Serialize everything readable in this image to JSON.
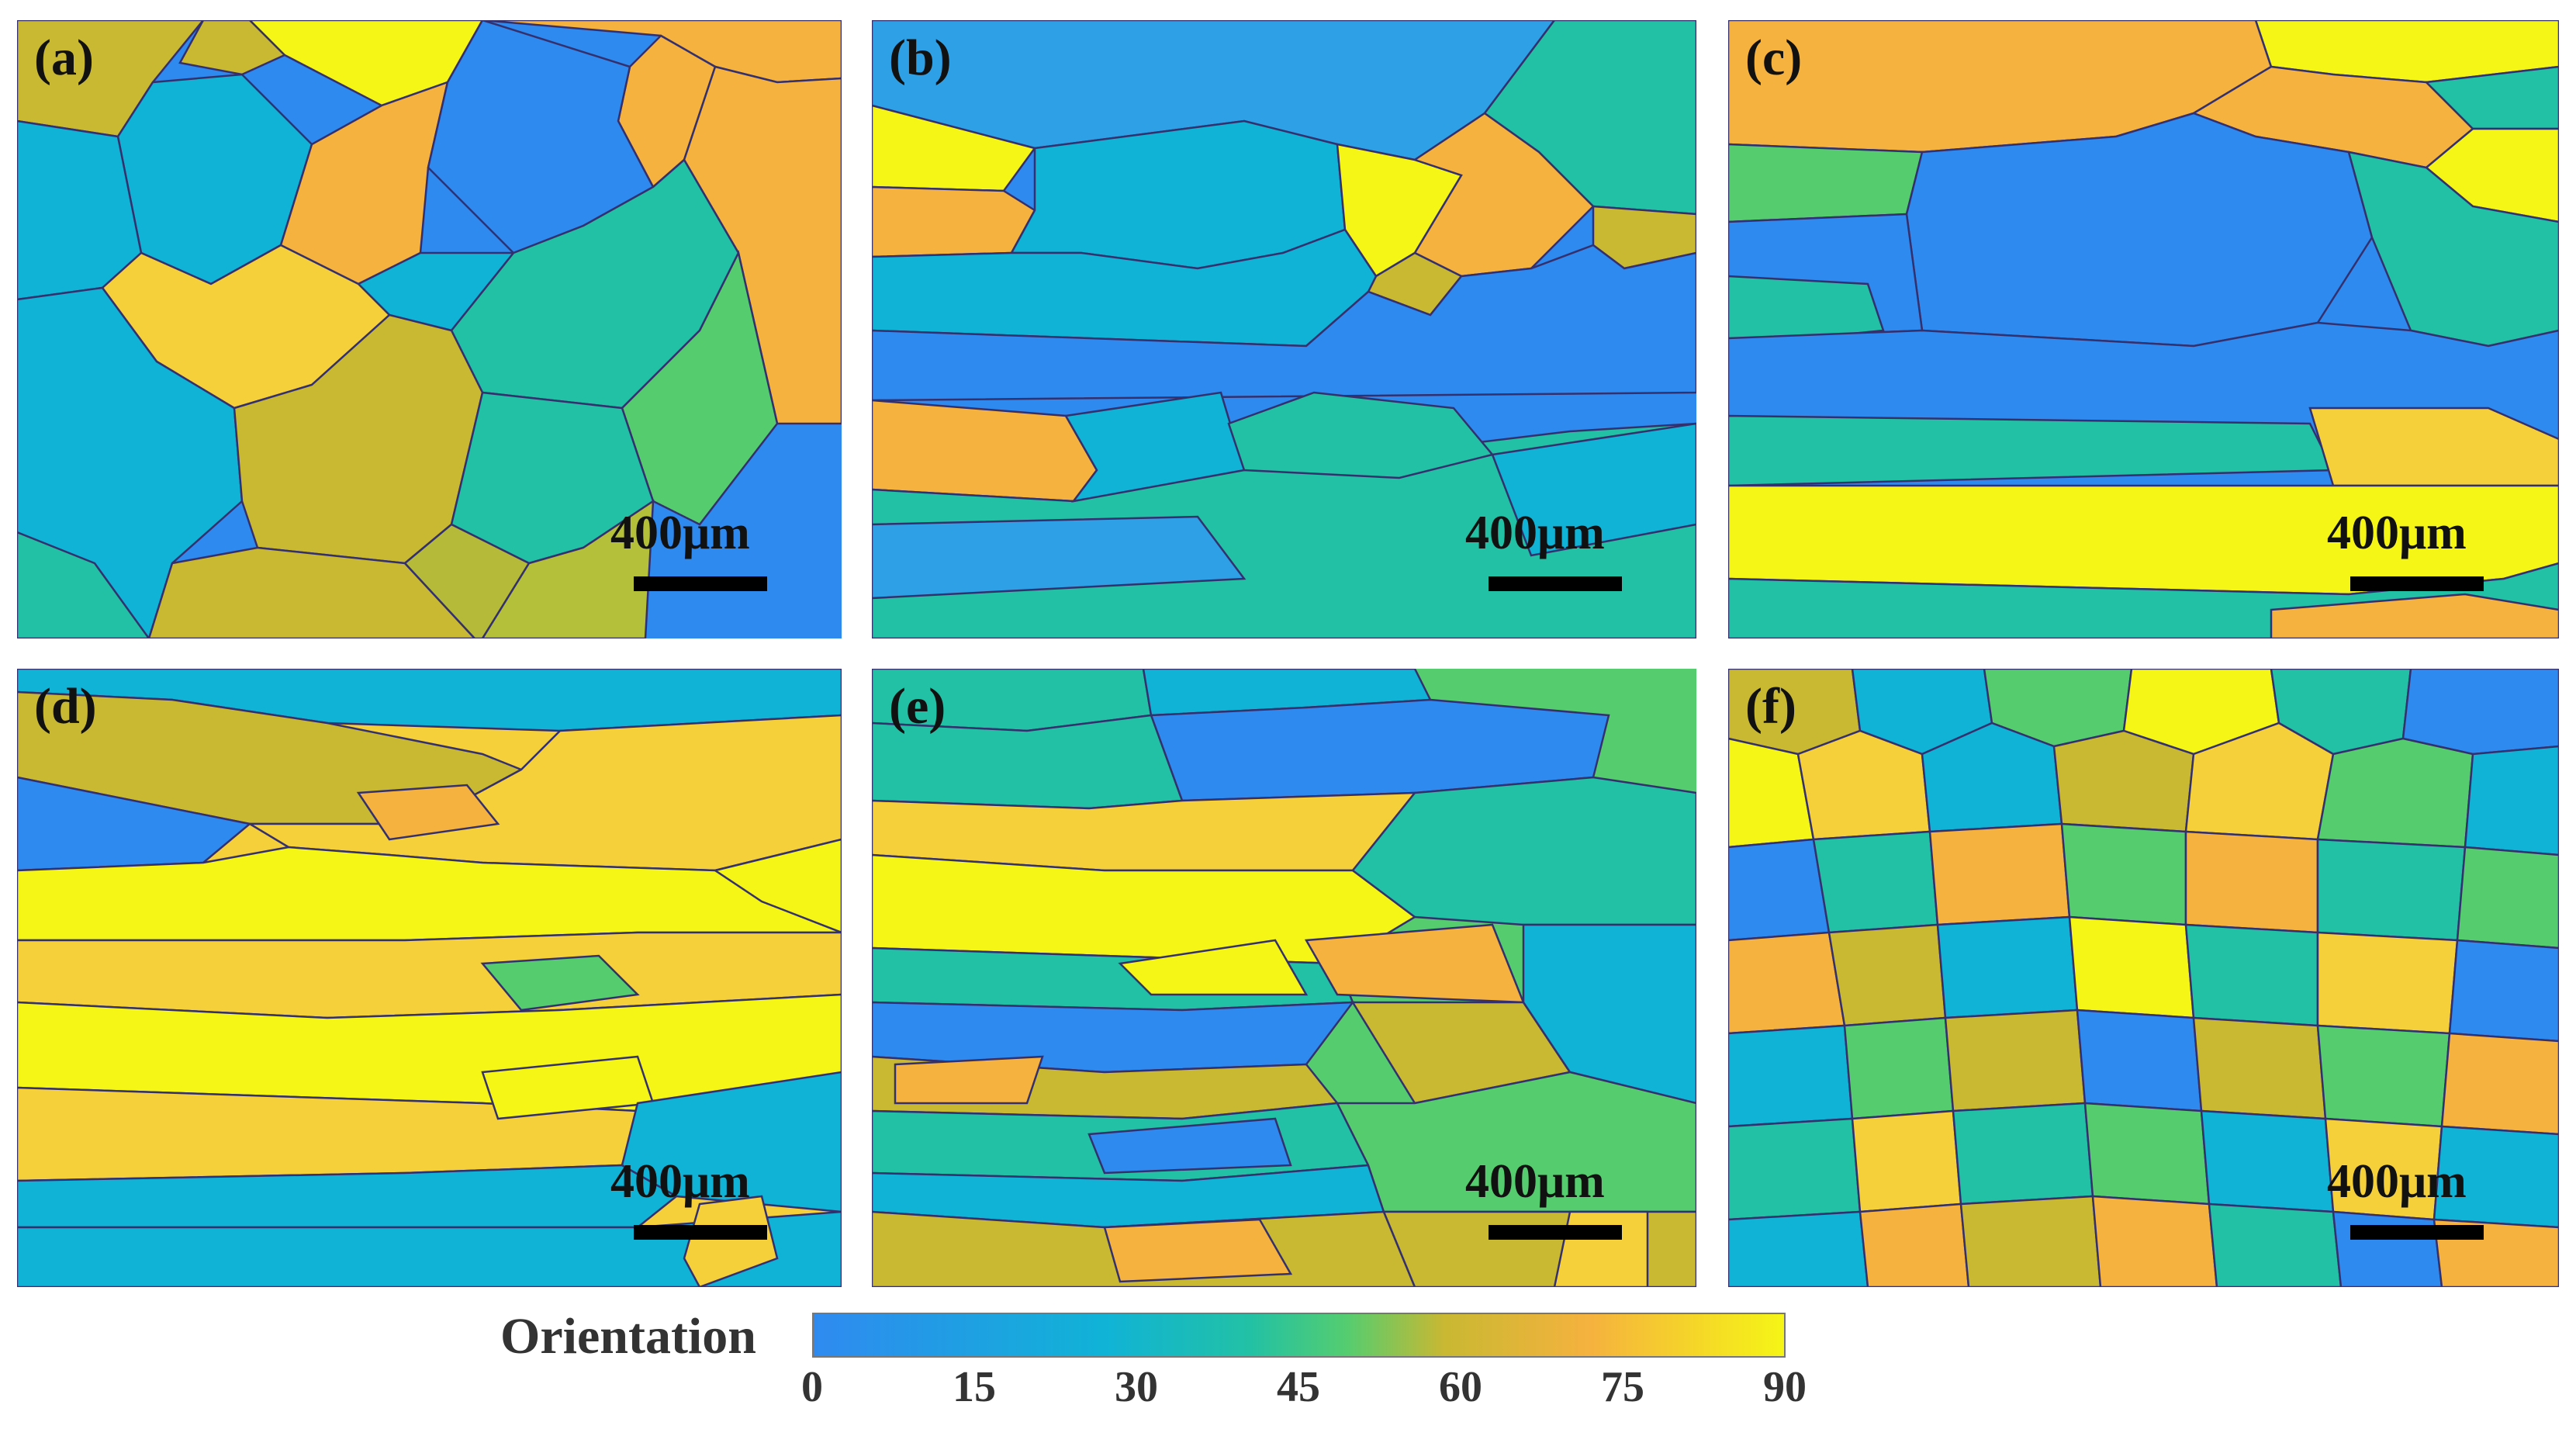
{
  "panels": [
    {
      "label": "(a)",
      "scale": "400μm"
    },
    {
      "label": "(b)",
      "scale": "400μm"
    },
    {
      "label": "(c)",
      "scale": "400μm"
    },
    {
      "label": "(d)",
      "scale": "400μm"
    },
    {
      "label": "(e)",
      "scale": "400μm"
    },
    {
      "label": "(f)",
      "scale": "400μm"
    }
  ],
  "colorbar": {
    "title": "Orientation",
    "ticks": [
      "0",
      "15",
      "30",
      "45",
      "60",
      "75",
      "90"
    ],
    "range": [
      0,
      90
    ],
    "colors": {
      "blue": "#2f8af0",
      "cyan": "#10b3d6",
      "teal": "#22c1a5",
      "green": "#55cd6f",
      "olive": "#c9b832",
      "orange": "#f5b23e",
      "yellow": "#f5f516",
      "boundary": "#34306e"
    }
  }
}
